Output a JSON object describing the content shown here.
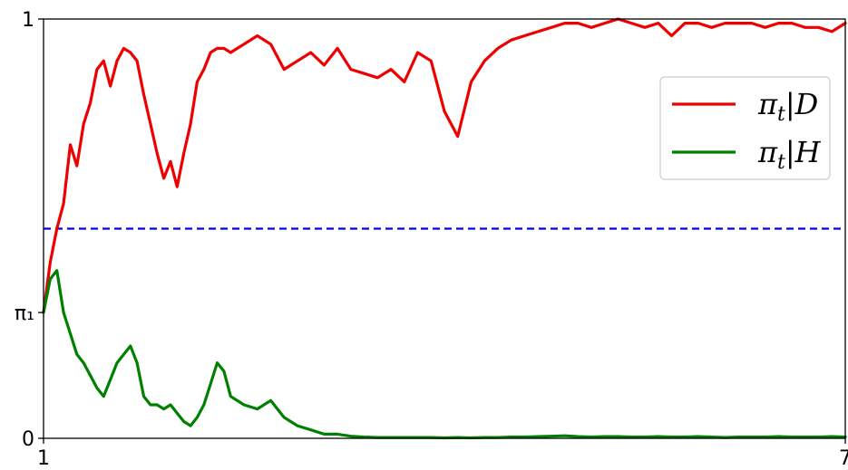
{
  "chart_data": {
    "type": "line",
    "title": "",
    "xlabel": "",
    "ylabel": "",
    "xlim": [
      1,
      7
    ],
    "ylim": [
      0,
      1
    ],
    "x_ticks": [
      {
        "value": 1,
        "label": "1"
      },
      {
        "value": 7,
        "label": "7"
      }
    ],
    "y_ticks": [
      {
        "value": 0,
        "label": "0"
      },
      {
        "value": 0.3,
        "label": "π₁"
      },
      {
        "value": 1,
        "label": "1"
      }
    ],
    "grid": false,
    "legend": "right",
    "reference_line": {
      "y": 0.5,
      "color": "#0000ee",
      "style": "dashed"
    },
    "series": [
      {
        "name": "π_t|D",
        "legend_base": "π",
        "legend_sub": "t",
        "legend_suffix": "|D",
        "color": "#ee0000",
        "x": [
          1.0,
          1.05,
          1.1,
          1.15,
          1.2,
          1.25,
          1.3,
          1.35,
          1.4,
          1.45,
          1.5,
          1.55,
          1.6,
          1.65,
          1.7,
          1.75,
          1.8,
          1.85,
          1.9,
          1.95,
          2.0,
          2.05,
          2.1,
          2.15,
          2.2,
          2.25,
          2.3,
          2.35,
          2.4,
          2.5,
          2.6,
          2.7,
          2.8,
          2.9,
          3.0,
          3.1,
          3.2,
          3.3,
          3.4,
          3.5,
          3.6,
          3.7,
          3.8,
          3.9,
          4.0,
          4.1,
          4.2,
          4.3,
          4.4,
          4.5,
          4.6,
          4.7,
          4.8,
          4.9,
          5.0,
          5.1,
          5.2,
          5.3,
          5.4,
          5.5,
          5.6,
          5.7,
          5.8,
          5.9,
          6.0,
          6.1,
          6.2,
          6.3,
          6.4,
          6.5,
          6.6,
          6.7,
          6.8,
          6.9,
          7.0
        ],
        "values": [
          0.3,
          0.42,
          0.5,
          0.56,
          0.7,
          0.65,
          0.75,
          0.8,
          0.88,
          0.9,
          0.84,
          0.9,
          0.93,
          0.92,
          0.9,
          0.82,
          0.75,
          0.68,
          0.62,
          0.66,
          0.6,
          0.68,
          0.75,
          0.85,
          0.88,
          0.92,
          0.93,
          0.93,
          0.92,
          0.94,
          0.96,
          0.94,
          0.88,
          0.9,
          0.92,
          0.89,
          0.93,
          0.88,
          0.87,
          0.86,
          0.88,
          0.85,
          0.92,
          0.9,
          0.78,
          0.72,
          0.85,
          0.9,
          0.93,
          0.95,
          0.96,
          0.97,
          0.98,
          0.99,
          0.99,
          0.98,
          0.99,
          1.0,
          0.99,
          0.98,
          0.99,
          0.96,
          0.99,
          0.99,
          0.98,
          0.99,
          0.99,
          0.99,
          0.98,
          0.99,
          0.99,
          0.98,
          0.98,
          0.97,
          0.99
        ]
      },
      {
        "name": "π_t|H",
        "legend_base": "π",
        "legend_sub": "t",
        "legend_suffix": "|H",
        "color": "#008000",
        "x": [
          1.0,
          1.05,
          1.1,
          1.15,
          1.2,
          1.25,
          1.3,
          1.35,
          1.4,
          1.45,
          1.5,
          1.55,
          1.6,
          1.65,
          1.7,
          1.75,
          1.8,
          1.85,
          1.9,
          1.95,
          2.0,
          2.05,
          2.1,
          2.15,
          2.2,
          2.25,
          2.3,
          2.35,
          2.4,
          2.5,
          2.6,
          2.7,
          2.8,
          2.9,
          3.0,
          3.1,
          3.2,
          3.3,
          3.4,
          3.5,
          3.6,
          3.7,
          3.8,
          3.9,
          4.0,
          4.1,
          4.2,
          4.3,
          4.4,
          4.5,
          4.6,
          4.7,
          4.8,
          4.9,
          5.0,
          5.1,
          5.2,
          5.3,
          5.4,
          5.5,
          5.6,
          5.7,
          5.8,
          5.9,
          6.0,
          6.1,
          6.2,
          6.3,
          6.4,
          6.5,
          6.6,
          6.7,
          6.8,
          6.9,
          7.0
        ],
        "values": [
          0.3,
          0.38,
          0.4,
          0.3,
          0.25,
          0.2,
          0.18,
          0.15,
          0.12,
          0.1,
          0.14,
          0.18,
          0.2,
          0.22,
          0.18,
          0.1,
          0.08,
          0.08,
          0.07,
          0.08,
          0.06,
          0.04,
          0.03,
          0.05,
          0.08,
          0.13,
          0.18,
          0.16,
          0.1,
          0.08,
          0.07,
          0.09,
          0.05,
          0.03,
          0.02,
          0.01,
          0.01,
          0.005,
          0.003,
          0.002,
          0.002,
          0.002,
          0.002,
          0.002,
          0.001,
          0.002,
          0.001,
          0.002,
          0.002,
          0.003,
          0.003,
          0.004,
          0.005,
          0.006,
          0.004,
          0.003,
          0.004,
          0.004,
          0.003,
          0.003,
          0.004,
          0.003,
          0.003,
          0.004,
          0.003,
          0.002,
          0.003,
          0.003,
          0.003,
          0.004,
          0.003,
          0.003,
          0.003,
          0.004,
          0.003
        ]
      }
    ]
  }
}
